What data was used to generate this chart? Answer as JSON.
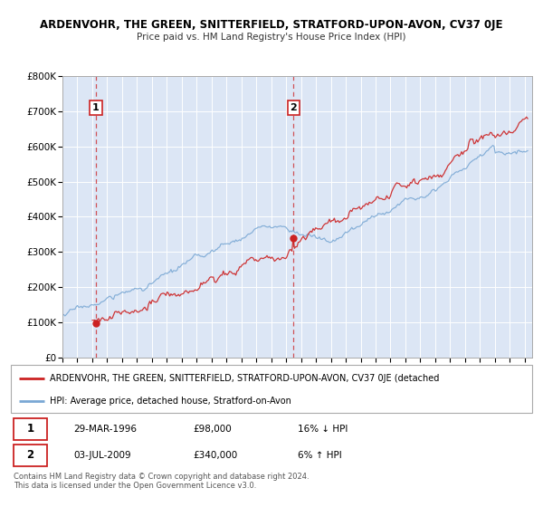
{
  "title": "ARDENVOHR, THE GREEN, SNITTERFIELD, STRATFORD-UPON-AVON, CV37 0JE",
  "subtitle": "Price paid vs. HM Land Registry's House Price Index (HPI)",
  "xlim": [
    1994.0,
    2025.5
  ],
  "ylim": [
    0,
    800000
  ],
  "yticks": [
    0,
    100000,
    200000,
    300000,
    400000,
    500000,
    600000,
    700000,
    800000
  ],
  "ytick_labels": [
    "£0",
    "£100K",
    "£200K",
    "£300K",
    "£400K",
    "£500K",
    "£600K",
    "£700K",
    "£800K"
  ],
  "sale1_x": 1996.24,
  "sale1_y": 98000,
  "sale2_x": 2009.5,
  "sale2_y": 340000,
  "sale1_date": "29-MAR-1996",
  "sale1_price": "£98,000",
  "sale1_hpi": "16% ↓ HPI",
  "sale2_date": "03-JUL-2009",
  "sale2_price": "£340,000",
  "sale2_hpi": "6% ↑ HPI",
  "legend_red": "ARDENVOHR, THE GREEN, SNITTERFIELD, STRATFORD-UPON-AVON, CV37 0JE (detached",
  "legend_blue": "HPI: Average price, detached house, Stratford-on-Avon",
  "footnote": "Contains HM Land Registry data © Crown copyright and database right 2024.\nThis data is licensed under the Open Government Licence v3.0.",
  "plot_bg": "#dce6f5",
  "red_color": "#cc2222",
  "blue_color": "#7aa8d4",
  "grid_color": "#ffffff",
  "fig_bg": "#ffffff"
}
